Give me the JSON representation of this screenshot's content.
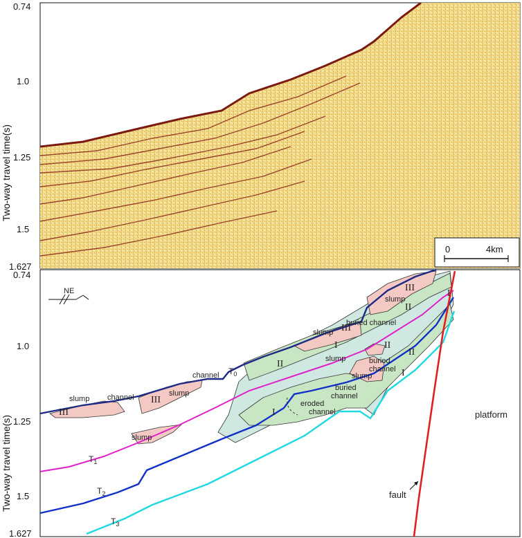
{
  "figure": {
    "ylabel_top": "Two-way travel time(s)",
    "ylabel_bottom": "Two-way travel time(s)",
    "ticks_top": [
      "0.74",
      "1.0",
      "1.25",
      "1.5",
      "1.627"
    ],
    "ticks_bottom": [
      "0.74",
      "1.0",
      "1.25",
      "1.5",
      "1.627"
    ],
    "scale_bar": {
      "start": "0",
      "end": "4km"
    },
    "compass": "NE",
    "horizons": {
      "t0": "T0",
      "t1": "T1",
      "t2": "T2",
      "t3": "T3",
      "t0_base": "T",
      "t0_sub": "0",
      "t1_base": "T",
      "t1_sub": "1",
      "t2_base": "T",
      "t2_sub": "2",
      "t3_base": "T",
      "t3_sub": "3"
    },
    "labels": {
      "platform": "platform",
      "fault": "fault",
      "slump": "slump",
      "channel": "channel",
      "buried": "buried",
      "buried_channel": "buried channel",
      "eroded": "eroded",
      "unit_I": "I",
      "unit_II": "II",
      "unit_III": "III"
    },
    "colors": {
      "slump_fill": "#f4c9c4",
      "unit_I_fill": "#c9e6c4",
      "unit_II_fill": "#cfe9e2",
      "seafloor": "#1c2a85",
      "t1": "#e020c8",
      "t2": "#1030c8",
      "t3": "#20d8e0",
      "fault": "#e02020"
    }
  }
}
